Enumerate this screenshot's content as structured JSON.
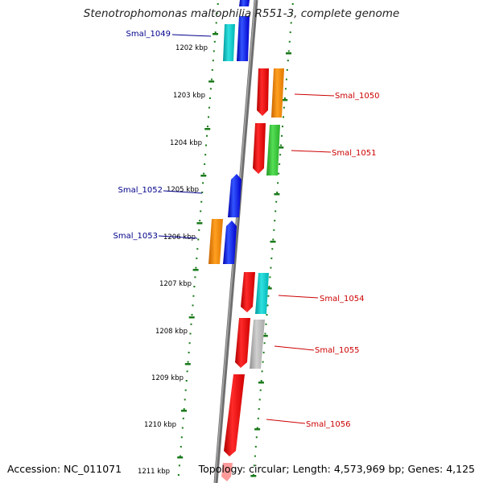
{
  "title": "Stenotrophomonas maltophilia R551-3, complete genome",
  "accession_label": "Accession: NC_011071",
  "topology_label": "Topology: circular; Length: 4,573,969 bp; Genes: 4,125",
  "colors": {
    "backbone": "#8a8a8a",
    "scale_ticks": "#1a7a1a",
    "left_gene_labels": "#00008b",
    "right_gene_labels": "#cc0000",
    "gene_blue": "#0000ff",
    "gene_red": "#ff0000",
    "gene_orange": "#ff8c00",
    "gene_cyan": "#00cccc",
    "gene_green": "#33cc33",
    "gene_grey": "#b0b0b0"
  },
  "scale_labels": [
    "1202 kbp",
    "1203 kbp",
    "1204 kbp",
    "1205 kbp",
    "1206 kbp",
    "1207 kbp",
    "1208 kbp",
    "1209 kbp",
    "1210 kbp",
    "1211 kbp"
  ],
  "labeled_genes": [
    {
      "label": "Smal_1049",
      "side": "left"
    },
    {
      "label": "Smal_1050",
      "side": "right"
    },
    {
      "label": "Smal_1051",
      "side": "right"
    },
    {
      "label": "Smal_1052",
      "side": "left"
    },
    {
      "label": "Smal_1053",
      "side": "left"
    },
    {
      "label": "Smal_1054",
      "side": "right"
    },
    {
      "label": "Smal_1055",
      "side": "right"
    },
    {
      "label": "Smal_1056",
      "side": "right"
    }
  ]
}
